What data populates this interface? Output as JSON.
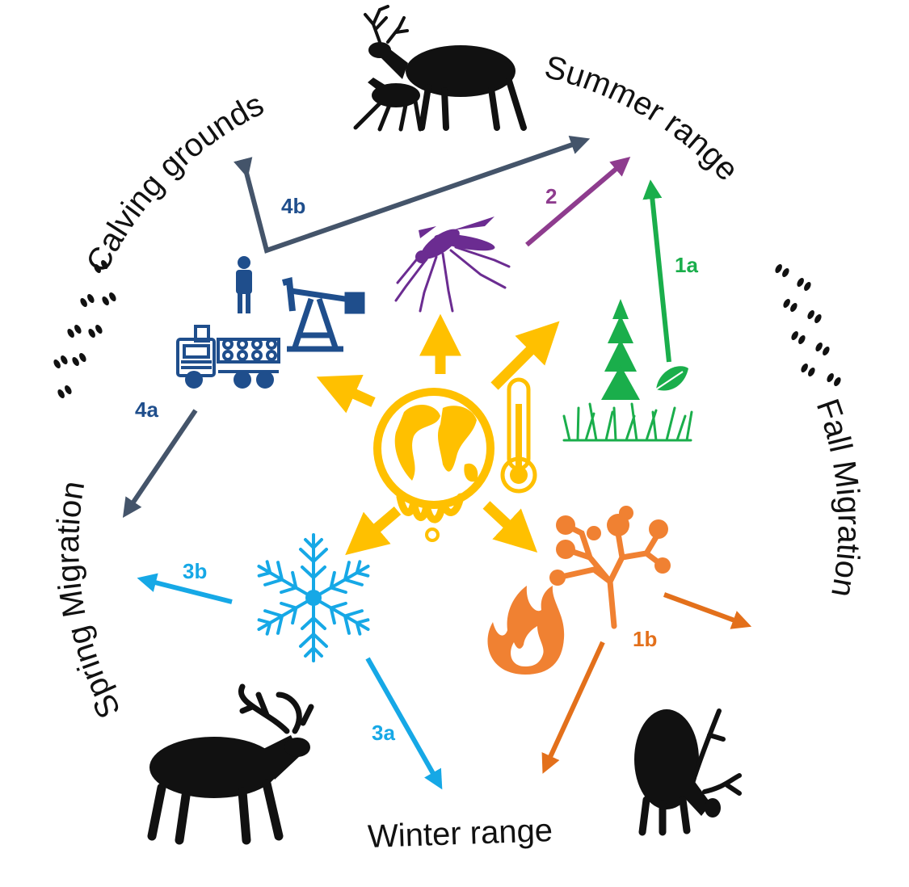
{
  "stages": {
    "calving": "Calving grounds",
    "summer": "Summer range",
    "fall": "Fall Migration",
    "winter": "Winter range",
    "spring": "Spring Migration"
  },
  "pathways": {
    "p1a": "1a",
    "p1b": "1b",
    "p2": "2",
    "p3a": "3a",
    "p3b": "3b",
    "p4a": "4a",
    "p4b": "4b"
  },
  "colors": {
    "climate": "#FFC000",
    "vegetation": "#1AAE4B",
    "insects": "#8E3C8E",
    "snow": "#16A8E6",
    "fire": "#E3701B",
    "fire_icon": "#F08132",
    "industry": "#1F4E8C",
    "industry_arrow": "#44546A",
    "animals": "#111111"
  },
  "icons": [
    "melting-globe-icon",
    "thermometer-icon",
    "spruce-tree-icon",
    "grass-icon",
    "leaf-icon",
    "mosquito-icon",
    "pumpjack-icon",
    "person-icon",
    "logging-truck-icon",
    "snowflake-icon",
    "lichen-icon",
    "fire-icon",
    "caribou-cow-calf-icon",
    "caribou-walking-icon",
    "caribou-grazing-icon",
    "hoofprints-icon"
  ]
}
